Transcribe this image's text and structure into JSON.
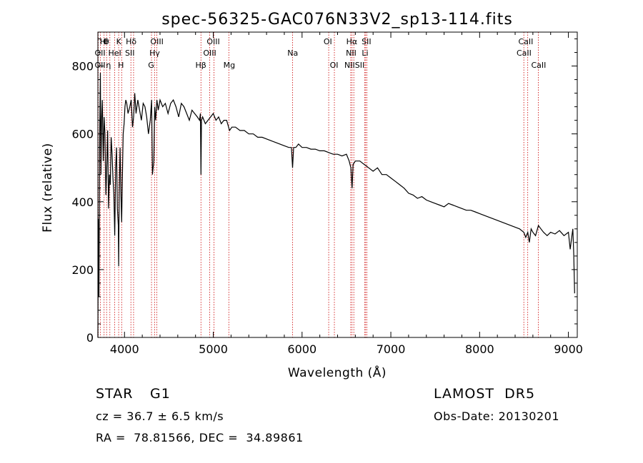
{
  "chart_data": {
    "type": "line",
    "title": "spec-56325-GAC076N33V2_sp13-114.fits",
    "xlabel": "Wavelength (Å)",
    "ylabel": "Flux (relative)",
    "xlim": [
      3700,
      9100
    ],
    "ylim": [
      0,
      900
    ],
    "xticks": [
      4000,
      5000,
      6000,
      7000,
      8000,
      9000
    ],
    "yticks": [
      0,
      200,
      400,
      600,
      800
    ],
    "grid": false,
    "line_color": "#000000",
    "line_marker_color": "#cc0000",
    "series": [
      {
        "x": [
          3700,
          3705,
          3712,
          3720,
          3728,
          3735,
          3742,
          3750,
          3760,
          3770,
          3780,
          3790,
          3800,
          3810,
          3820,
          3830,
          3840,
          3850,
          3860,
          3870,
          3880,
          3890,
          3900,
          3910,
          3920,
          3930,
          3934,
          3940,
          3950,
          3960,
          3968,
          3975,
          3985,
          3995,
          4005,
          4015,
          4025,
          4040,
          4060,
          4075,
          4090,
          4102,
          4115,
          4130,
          4150,
          4170,
          4190,
          4210,
          4230,
          4250,
          4270,
          4290,
          4305,
          4315,
          4330,
          4340,
          4350,
          4365,
          4380,
          4400,
          4430,
          4460,
          4490,
          4520,
          4550,
          4580,
          4610,
          4640,
          4670,
          4700,
          4730,
          4760,
          4790,
          4820,
          4845,
          4855,
          4861,
          4867,
          4880,
          4910,
          4940,
          4970,
          5000,
          5030,
          5060,
          5090,
          5120,
          5150,
          5183,
          5210,
          5250,
          5300,
          5350,
          5400,
          5450,
          5500,
          5550,
          5600,
          5650,
          5700,
          5750,
          5800,
          5850,
          5880,
          5893,
          5905,
          5930,
          5960,
          6000,
          6050,
          6100,
          6150,
          6200,
          6250,
          6300,
          6350,
          6400,
          6450,
          6500,
          6530,
          6550,
          6563,
          6575,
          6600,
          6650,
          6700,
          6750,
          6800,
          6850,
          6900,
          6950,
          7000,
          7050,
          7100,
          7150,
          7200,
          7250,
          7300,
          7350,
          7400,
          7450,
          7500,
          7550,
          7600,
          7650,
          7700,
          7750,
          7800,
          7850,
          7900,
          7950,
          8000,
          8050,
          8100,
          8150,
          8200,
          8250,
          8300,
          8350,
          8400,
          8450,
          8498,
          8520,
          8542,
          8560,
          8580,
          8600,
          8630,
          8662,
          8690,
          8720,
          8760,
          8800,
          8850,
          8900,
          8950,
          9000,
          9020,
          9040,
          9050,
          9060,
          9070
        ],
        "values": [
          0,
          350,
          120,
          600,
          780,
          480,
          640,
          700,
          520,
          650,
          600,
          420,
          500,
          610,
          380,
          480,
          450,
          590,
          540,
          470,
          420,
          300,
          500,
          560,
          380,
          330,
          210,
          420,
          560,
          420,
          340,
          460,
          600,
          630,
          680,
          700,
          690,
          660,
          680,
          700,
          620,
          650,
          720,
          660,
          700,
          670,
          640,
          690,
          680,
          650,
          600,
          640,
          700,
          480,
          520,
          680,
          640,
          700,
          670,
          700,
          680,
          690,
          660,
          690,
          700,
          680,
          650,
          690,
          680,
          660,
          640,
          670,
          660,
          650,
          640,
          660,
          480,
          640,
          650,
          630,
          640,
          650,
          660,
          640,
          650,
          630,
          640,
          640,
          610,
          620,
          620,
          610,
          610,
          600,
          600,
          590,
          590,
          585,
          580,
          575,
          570,
          565,
          560,
          560,
          500,
          560,
          560,
          570,
          560,
          560,
          555,
          555,
          550,
          550,
          545,
          540,
          540,
          535,
          540,
          520,
          500,
          440,
          510,
          520,
          520,
          510,
          500,
          490,
          500,
          480,
          480,
          470,
          460,
          450,
          440,
          425,
          420,
          410,
          415,
          405,
          400,
          395,
          390,
          385,
          395,
          390,
          385,
          380,
          375,
          375,
          370,
          365,
          360,
          355,
          350,
          345,
          340,
          335,
          330,
          325,
          320,
          310,
          295,
          310,
          280,
          320,
          310,
          300,
          330,
          320,
          310,
          300,
          310,
          305,
          315,
          300,
          310,
          260,
          300,
          320,
          250,
          130
        ]
      }
    ],
    "lines": [
      {
        "x": 3704,
        "label": "OII"
      },
      {
        "x": 3727,
        "label": "OII"
      },
      {
        "x": 3770,
        "label": "Hθ"
      },
      {
        "x": 3798,
        "label": "Hη"
      },
      {
        "x": 3835,
        "label": "Hη"
      },
      {
        "x": 3889,
        "label": "HeI"
      },
      {
        "x": 3934,
        "label": "K"
      },
      {
        "x": 3968,
        "label": "H"
      },
      {
        "x": 4072,
        "label": "SII"
      },
      {
        "x": 4102,
        "label": "Hδ"
      },
      {
        "x": 4304,
        "label": "G"
      },
      {
        "x": 4340,
        "label": "Hγ"
      },
      {
        "x": 4363,
        "label": "OIII"
      },
      {
        "x": 4861,
        "label": "Hβ"
      },
      {
        "x": 4959,
        "label": "OIII"
      },
      {
        "x": 5007,
        "label": "OIII"
      },
      {
        "x": 5175,
        "label": "Mg"
      },
      {
        "x": 5893,
        "label": "Na"
      },
      {
        "x": 6300,
        "label": "OI"
      },
      {
        "x": 6364,
        "label": "OI"
      },
      {
        "x": 6548,
        "label": "NII"
      },
      {
        "x": 6563,
        "label": "Hα"
      },
      {
        "x": 6583,
        "label": "NII"
      },
      {
        "x": 6707,
        "label": "Li"
      },
      {
        "x": 6716,
        "label": "SII"
      },
      {
        "x": 6731,
        "label": "SII"
      },
      {
        "x": 8498,
        "label": "CaII"
      },
      {
        "x": 8542,
        "label": "CaII"
      },
      {
        "x": 8662,
        "label": "CaII"
      }
    ],
    "line_label_rows": [
      {
        "y": 62,
        "items": [
          {
            "x": 3755,
            "text": "H"
          },
          {
            "x": 3785,
            "text": "θ"
          },
          {
            "x": 3800,
            "text": "θ"
          },
          {
            "x": 3935,
            "text": "K"
          },
          {
            "x": 4075,
            "text": "Hδ"
          },
          {
            "x": 4365,
            "text": "OIII"
          },
          {
            "x": 5000,
            "text": "OIII"
          },
          {
            "x": 6290,
            "text": "OI"
          },
          {
            "x": 6560,
            "text": "Hα"
          },
          {
            "x": 6725,
            "text": "SII"
          },
          {
            "x": 8520,
            "text": "CaII"
          }
        ]
      },
      {
        "y": 78,
        "items": [
          {
            "x": 3725,
            "text": "OII"
          },
          {
            "x": 3890,
            "text": "HeI"
          },
          {
            "x": 4060,
            "text": "SII"
          },
          {
            "x": 4340,
            "text": "Hγ"
          },
          {
            "x": 4960,
            "text": "OIII"
          },
          {
            "x": 5895,
            "text": "Na"
          },
          {
            "x": 6553,
            "text": "NII"
          },
          {
            "x": 6710,
            "text": "Li"
          },
          {
            "x": 8500,
            "text": "CaII"
          }
        ]
      },
      {
        "y": 95,
        "items": [
          {
            "x": 3725,
            "text": "OII"
          },
          {
            "x": 3820,
            "text": "η"
          },
          {
            "x": 3960,
            "text": "H"
          },
          {
            "x": 4300,
            "text": "G"
          },
          {
            "x": 4860,
            "text": "Hβ"
          },
          {
            "x": 5180,
            "text": "Mg"
          },
          {
            "x": 6360,
            "text": "OI"
          },
          {
            "x": 6590,
            "text": "NIISII"
          },
          {
            "x": 8665,
            "text": "CaII"
          }
        ]
      }
    ]
  },
  "info": {
    "object_class": "STAR",
    "subclass": "G1",
    "survey": "LAMOST  DR5",
    "redshift_line": "cz = 36.7 ± 6.5 km/s",
    "obs_date": "Obs-Date: 20130201",
    "coords": "RA =  78.81566, DEC =  34.89861"
  }
}
